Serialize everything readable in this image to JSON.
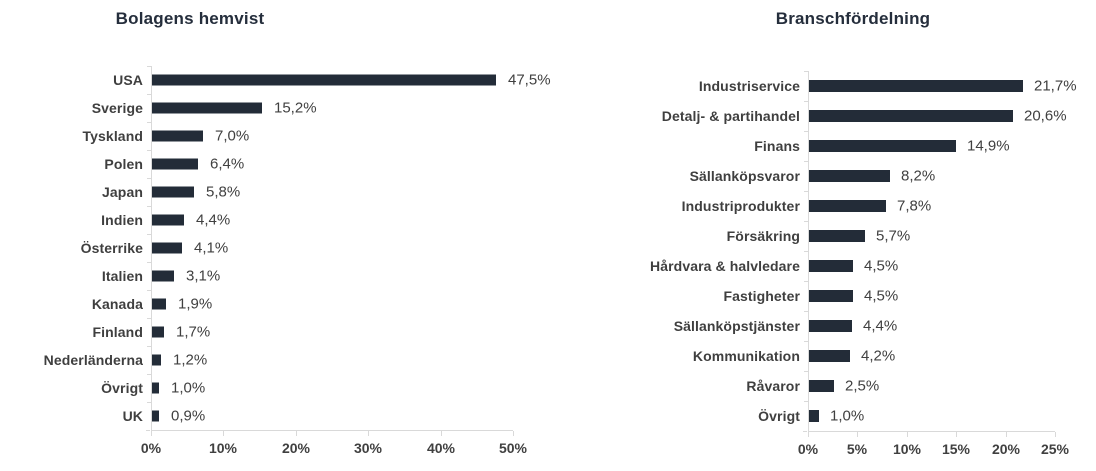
{
  "colors": {
    "background": "#FFFFFF",
    "bar": "#232C38",
    "title": "#252E3C",
    "category_label": "#3F3F3F",
    "value_label": "#404040",
    "axis_line": "#D9D9D9",
    "tick_label": "#404040"
  },
  "chart_data": [
    {
      "type": "bar",
      "orientation": "horizontal",
      "title": "Bolagens hemvist",
      "categories": [
        "USA",
        "Sverige",
        "Tyskland",
        "Polen",
        "Japan",
        "Indien",
        "Österrike",
        "Italien",
        "Kanada",
        "Finland",
        "Nederländerna",
        "Övrigt",
        "UK"
      ],
      "values": [
        47.5,
        15.2,
        7.0,
        6.4,
        5.8,
        4.4,
        4.1,
        3.1,
        1.9,
        1.7,
        1.2,
        1.0,
        0.9
      ],
      "labels": [
        "47,5%",
        "15,2%",
        "7,0%",
        "6,4%",
        "5,8%",
        "4,4%",
        "4,1%",
        "3,1%",
        "1,9%",
        "1,7%",
        "1,2%",
        "1,0%",
        "0,9%"
      ],
      "xlabel": "",
      "ylabel": "",
      "xlim": [
        0,
        50
      ],
      "x_ticks": [
        "0%",
        "10%",
        "20%",
        "30%",
        "40%",
        "50%"
      ],
      "grid": false,
      "legend": false
    },
    {
      "type": "bar",
      "orientation": "horizontal",
      "title": "Branschfördelning",
      "categories": [
        "Industriservice",
        "Detalj- & partihandel",
        "Finans",
        "Sällanköpsvaror",
        "Industriprodukter",
        "Försäkring",
        "Hårdvara & halvledare",
        "Fastigheter",
        "Sällanköpstjänster",
        "Kommunikation",
        "Råvaror",
        "Övrigt"
      ],
      "values": [
        21.7,
        20.6,
        14.9,
        8.2,
        7.8,
        5.7,
        4.5,
        4.5,
        4.4,
        4.2,
        2.5,
        1.0
      ],
      "labels": [
        "21,7%",
        "20,6%",
        "14,9%",
        "8,2%",
        "7,8%",
        "5,7%",
        "4,5%",
        "4,5%",
        "4,4%",
        "4,2%",
        "2,5%",
        "1,0%"
      ],
      "xlabel": "",
      "ylabel": "",
      "xlim": [
        0,
        25
      ],
      "x_ticks": [
        "0%",
        "5%",
        "10%",
        "15%",
        "20%",
        "25%"
      ],
      "grid": false,
      "legend": false
    }
  ]
}
